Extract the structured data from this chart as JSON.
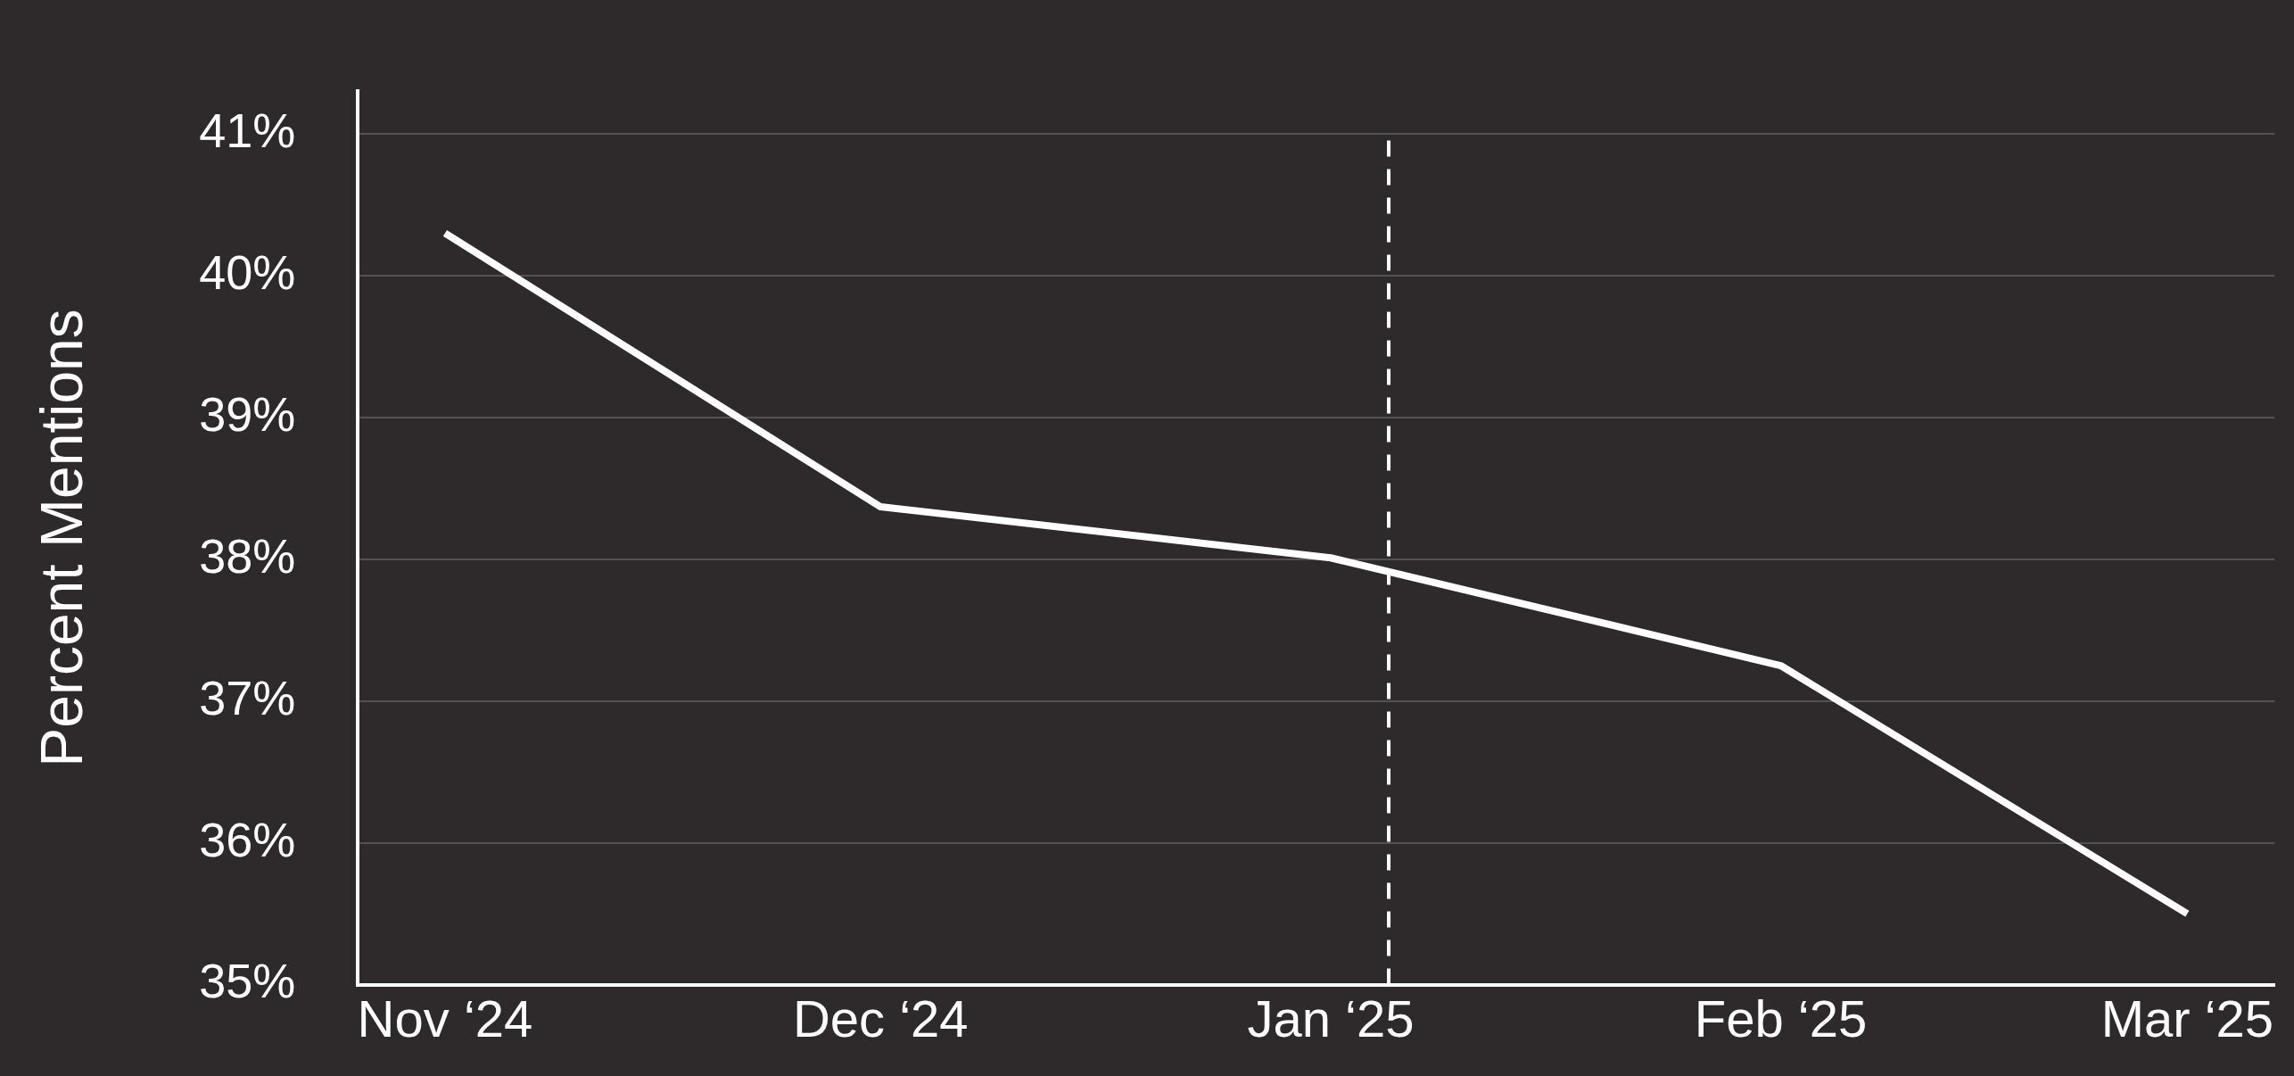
{
  "chart_data": {
    "type": "line",
    "ylabel": "Percent Mentions",
    "x": [
      "2024-11",
      "2024-12",
      "2025-01",
      "2025-02",
      "2025-03"
    ],
    "series": [
      {
        "color": "#ffffff",
        "values": [
          40.3,
          38.37,
          38.01,
          37.25,
          35.5
        ]
      }
    ],
    "xlim": [
      "2024-10-26",
      "2025-03-07"
    ],
    "xticks": [
      {
        "value": "2024-11",
        "label": "Nov ‘24"
      },
      {
        "value": "2024-12",
        "label": "Dec ‘24"
      },
      {
        "value": "2025-01",
        "label": "Jan ‘25"
      },
      {
        "value": "2025-02",
        "label": "Feb ‘25"
      },
      {
        "value": "2025-03",
        "label": "Mar ‘25"
      }
    ],
    "ylim": [
      35,
      41.3
    ],
    "yticks": [
      {
        "value": 35,
        "label": "35%"
      },
      {
        "value": 36,
        "label": "36%"
      },
      {
        "value": 37,
        "label": "37%"
      },
      {
        "value": 38,
        "label": "38%"
      },
      {
        "value": 39,
        "label": "39%"
      },
      {
        "value": 40,
        "label": "40%"
      },
      {
        "value": 41,
        "label": "41%"
      }
    ],
    "ref_lines": [
      {
        "axis": "x",
        "value": "2025-01-05",
        "color": "#ffffff",
        "line_style": "dashed"
      }
    ],
    "grid": "y",
    "marker": "none",
    "line_style": "solid",
    "legend": false
  }
}
